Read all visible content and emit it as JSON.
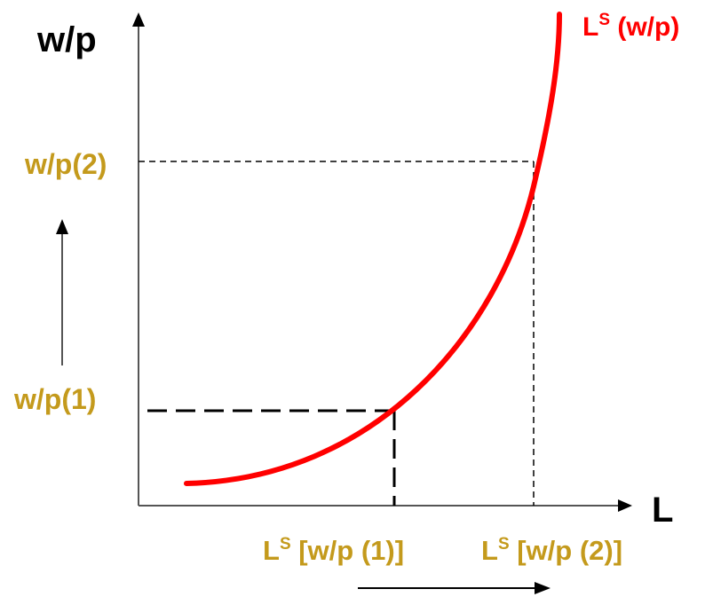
{
  "axes": {
    "y_label": "w/p",
    "x_label": "L"
  },
  "curve": {
    "label_main": "L",
    "label_sup": "S",
    "label_rest": " (w/p)"
  },
  "levels": {
    "wp1": "w/p(1)",
    "wp2": "w/p(2)"
  },
  "quantities": {
    "q1_main": "L",
    "q1_sup": "S",
    "q1_rest": " [w/p (1)]",
    "q2_main": "L",
    "q2_sup": "S",
    "q2_rest": " [w/p (2)]"
  },
  "colors": {
    "curve": "#ff0000",
    "label_gold": "#c49a1c",
    "axis": "#555555",
    "text": "#000000"
  }
}
